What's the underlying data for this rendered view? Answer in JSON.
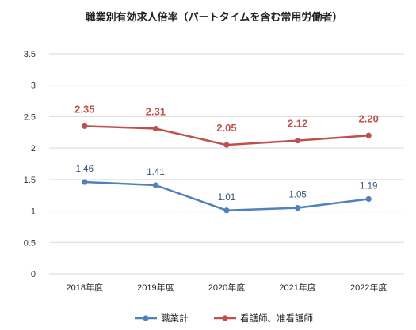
{
  "chart_data": {
    "type": "line",
    "title": "職業別有効求人倍率（パートタイムを含む常用労働者）",
    "categories": [
      "2018年度",
      "2019年度",
      "2020年度",
      "2021年度",
      "2022年度"
    ],
    "ylim": [
      0,
      3.5
    ],
    "yticks": [
      "0",
      "0.5",
      "1",
      "1.5",
      "2",
      "2.5",
      "3",
      "3.5"
    ],
    "grid": true,
    "legend_position": "bottom",
    "series": [
      {
        "name": "職業計",
        "color": "#4f81bd",
        "values": [
          1.46,
          1.41,
          1.01,
          1.05,
          1.19
        ],
        "labels": [
          "1.46",
          "1.41",
          "1.01",
          "1.05",
          "1.19"
        ]
      },
      {
        "name": "看護師、准看護師",
        "color": "#c0504d",
        "values": [
          2.35,
          2.31,
          2.05,
          2.12,
          2.2
        ],
        "labels": [
          "2.35",
          "2.31",
          "2.05",
          "2.12",
          "2.20"
        ]
      }
    ]
  }
}
